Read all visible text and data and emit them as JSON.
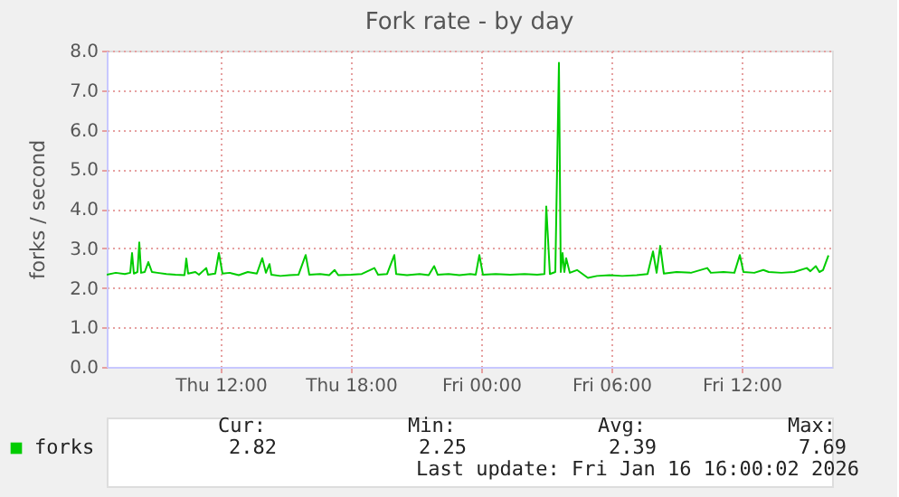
{
  "chart_data": {
    "type": "line",
    "title": "Fork rate - by day",
    "ylabel": "forks / second",
    "x": [
      "2026-01-15T06:45",
      "2026-01-15T07:10",
      "2026-01-15T07:35",
      "2026-01-15T07:50",
      "2026-01-15T07:55",
      "2026-01-15T08:00",
      "2026-01-15T08:10",
      "2026-01-15T08:15",
      "2026-01-15T08:20",
      "2026-01-15T08:30",
      "2026-01-15T08:40",
      "2026-01-15T08:50",
      "2026-01-15T09:05",
      "2026-01-15T09:30",
      "2026-01-15T09:55",
      "2026-01-15T10:20",
      "2026-01-15T10:25",
      "2026-01-15T10:30",
      "2026-01-15T10:50",
      "2026-01-15T11:00",
      "2026-01-15T11:20",
      "2026-01-15T11:25",
      "2026-01-15T11:45",
      "2026-01-15T11:55",
      "2026-01-15T12:05",
      "2026-01-15T12:25",
      "2026-01-15T12:50",
      "2026-01-15T13:15",
      "2026-01-15T13:40",
      "2026-01-15T13:55",
      "2026-01-15T14:05",
      "2026-01-15T14:15",
      "2026-01-15T14:20",
      "2026-01-15T14:45",
      "2026-01-15T15:10",
      "2026-01-15T15:35",
      "2026-01-15T15:55",
      "2026-01-15T16:05",
      "2026-01-15T16:35",
      "2026-01-15T17:00",
      "2026-01-15T17:15",
      "2026-01-15T17:25",
      "2026-01-15T18:00",
      "2026-01-15T18:30",
      "2026-01-15T19:05",
      "2026-01-15T19:15",
      "2026-01-15T19:40",
      "2026-01-15T20:00",
      "2026-01-15T20:05",
      "2026-01-15T20:35",
      "2026-01-15T21:10",
      "2026-01-15T21:35",
      "2026-01-15T21:50",
      "2026-01-15T22:00",
      "2026-01-15T22:30",
      "2026-01-15T23:00",
      "2026-01-15T23:30",
      "2026-01-15T23:45",
      "2026-01-15T23:55",
      "2026-01-16T00:05",
      "2026-01-16T00:40",
      "2026-01-16T01:20",
      "2026-01-16T02:00",
      "2026-01-16T02:35",
      "2026-01-16T02:55",
      "2026-01-16T03:00",
      "2026-01-16T03:10",
      "2026-01-16T03:25",
      "2026-01-16T03:35",
      "2026-01-16T03:40",
      "2026-01-16T03:45",
      "2026-01-16T03:50",
      "2026-01-16T03:55",
      "2026-01-16T04:05",
      "2026-01-16T04:25",
      "2026-01-16T04:55",
      "2026-01-16T05:20",
      "2026-01-16T05:55",
      "2026-01-16T06:30",
      "2026-01-16T07:10",
      "2026-01-16T07:40",
      "2026-01-16T07:55",
      "2026-01-16T08:05",
      "2026-01-16T08:15",
      "2026-01-16T08:25",
      "2026-01-16T09:00",
      "2026-01-16T09:40",
      "2026-01-16T10:25",
      "2026-01-16T10:35",
      "2026-01-16T11:10",
      "2026-01-16T11:40",
      "2026-01-16T11:55",
      "2026-01-16T12:05",
      "2026-01-16T12:35",
      "2026-01-16T13:00",
      "2026-01-16T13:15",
      "2026-01-16T13:50",
      "2026-01-16T14:25",
      "2026-01-16T15:00",
      "2026-01-16T15:10",
      "2026-01-16T15:25",
      "2026-01-16T15:35",
      "2026-01-16T15:45",
      "2026-01-16T16:00"
    ],
    "series": [
      {
        "name": "forks",
        "color": "#00cc00",
        "values": [
          2.33,
          2.38,
          2.35,
          2.38,
          2.88,
          2.36,
          2.4,
          3.15,
          2.38,
          2.4,
          2.65,
          2.4,
          2.38,
          2.35,
          2.33,
          2.32,
          2.74,
          2.36,
          2.4,
          2.33,
          2.5,
          2.33,
          2.36,
          2.88,
          2.36,
          2.38,
          2.32,
          2.4,
          2.36,
          2.75,
          2.38,
          2.6,
          2.33,
          2.3,
          2.32,
          2.33,
          2.83,
          2.33,
          2.35,
          2.32,
          2.45,
          2.32,
          2.33,
          2.35,
          2.5,
          2.33,
          2.35,
          2.83,
          2.35,
          2.32,
          2.35,
          2.32,
          2.55,
          2.33,
          2.35,
          2.32,
          2.35,
          2.33,
          2.83,
          2.33,
          2.35,
          2.33,
          2.35,
          2.33,
          2.35,
          4.06,
          2.35,
          2.4,
          7.69,
          2.4,
          2.88,
          2.4,
          2.75,
          2.38,
          2.45,
          2.25,
          2.3,
          2.32,
          2.3,
          2.32,
          2.35,
          2.92,
          2.38,
          3.06,
          2.36,
          2.4,
          2.38,
          2.5,
          2.38,
          2.4,
          2.38,
          2.83,
          2.4,
          2.38,
          2.45,
          2.4,
          2.38,
          2.4,
          2.5,
          2.42,
          2.55,
          2.4,
          2.45,
          2.82
        ]
      }
    ],
    "xlim": [
      "2026-01-15T06:45",
      "2026-01-16T16:10"
    ],
    "xticks": [
      {
        "value": "2026-01-15T12:00",
        "label": "Thu 12:00"
      },
      {
        "value": "2026-01-15T18:00",
        "label": "Thu 18:00"
      },
      {
        "value": "2026-01-16T00:00",
        "label": "Fri 00:00"
      },
      {
        "value": "2026-01-16T06:00",
        "label": "Fri 06:00"
      },
      {
        "value": "2026-01-16T12:00",
        "label": "Fri 12:00"
      }
    ],
    "ylim": [
      0,
      8
    ],
    "yticks": [
      {
        "value": 0,
        "label": "0.0"
      },
      {
        "value": 1,
        "label": "1.0"
      },
      {
        "value": 2,
        "label": "2.0"
      },
      {
        "value": 3,
        "label": "3.0"
      },
      {
        "value": 4,
        "label": "4.0"
      },
      {
        "value": 5,
        "label": "5.0"
      },
      {
        "value": 6,
        "label": "6.0"
      },
      {
        "value": 7,
        "label": "7.0"
      },
      {
        "value": 8,
        "label": "8.0"
      }
    ],
    "grid": true,
    "legend": "bottom",
    "line_style": "solid",
    "marker": "none",
    "annotations": [
      "Cur:",
      "Min:",
      "Avg:",
      "Max:",
      "2.82",
      "2.25",
      "2.39",
      "7.69",
      "Last update: Fri Jan 16 16:00:02 2026"
    ]
  }
}
